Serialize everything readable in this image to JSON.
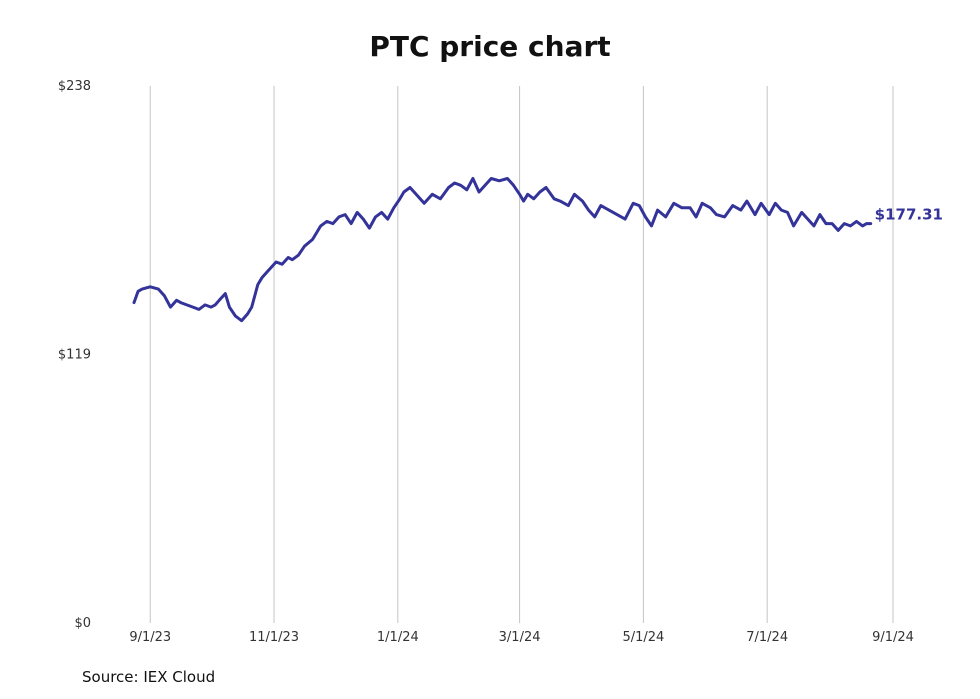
{
  "chart_data": {
    "type": "line",
    "title": "PTC price chart",
    "source": "Source: IEX Cloud",
    "xlabel": "",
    "ylabel": "",
    "ylim": [
      0,
      238
    ],
    "y_ticks": [
      {
        "value": 0,
        "label": "$0"
      },
      {
        "value": 119,
        "label": "$119"
      },
      {
        "value": 238,
        "label": "$238"
      }
    ],
    "x_ticks": [
      {
        "date": "2023-09-01",
        "label": "9/1/23"
      },
      {
        "date": "2023-11-01",
        "label": "11/1/23"
      },
      {
        "date": "2024-01-01",
        "label": "1/1/24"
      },
      {
        "date": "2024-03-01",
        "label": "3/1/24"
      },
      {
        "date": "2024-05-01",
        "label": "5/1/24"
      },
      {
        "date": "2024-07-01",
        "label": "7/1/24"
      },
      {
        "date": "2024-09-01",
        "label": "9/1/24"
      }
    ],
    "xlim": [
      "2023-08-24",
      "2024-09-01"
    ],
    "grid": "vertical",
    "line_color": "#33339a",
    "last_value_label": "$177.31",
    "series": [
      {
        "x": [
          "2023-08-24",
          "2023-08-26",
          "2023-08-28",
          "2023-09-01",
          "2023-09-05",
          "2023-09-08",
          "2023-09-11",
          "2023-09-14",
          "2023-09-16",
          "2023-09-19",
          "2023-09-22",
          "2023-09-25",
          "2023-09-28",
          "2023-10-01",
          "2023-10-03",
          "2023-10-05",
          "2023-10-08",
          "2023-10-10",
          "2023-10-13",
          "2023-10-16",
          "2023-10-19",
          "2023-10-21",
          "2023-10-24",
          "2023-10-26",
          "2023-10-28",
          "2023-10-31",
          "2023-11-02",
          "2023-11-05",
          "2023-11-08",
          "2023-11-10",
          "2023-11-13",
          "2023-11-16",
          "2023-11-20",
          "2023-11-24",
          "2023-11-27",
          "2023-11-30",
          "2023-12-03",
          "2023-12-06",
          "2023-12-09",
          "2023-12-12",
          "2023-12-15",
          "2023-12-18",
          "2023-12-21",
          "2023-12-24",
          "2023-12-27",
          "2023-12-30",
          "2024-01-02",
          "2024-01-04",
          "2024-01-07",
          "2024-01-10",
          "2024-01-14",
          "2024-01-18",
          "2024-01-22",
          "2024-01-26",
          "2024-01-29",
          "2024-02-01",
          "2024-02-04",
          "2024-02-07",
          "2024-02-10",
          "2024-02-13",
          "2024-02-16",
          "2024-02-20",
          "2024-02-24",
          "2024-02-27",
          "2024-03-01",
          "2024-03-03",
          "2024-03-05",
          "2024-03-08",
          "2024-03-11",
          "2024-03-14",
          "2024-03-18",
          "2024-03-21",
          "2024-03-25",
          "2024-03-28",
          "2024-04-01",
          "2024-04-04",
          "2024-04-07",
          "2024-04-10",
          "2024-04-14",
          "2024-04-18",
          "2024-04-22",
          "2024-04-26",
          "2024-04-29",
          "2024-05-02",
          "2024-05-05",
          "2024-05-08",
          "2024-05-12",
          "2024-05-16",
          "2024-05-20",
          "2024-05-24",
          "2024-05-27",
          "2024-05-30",
          "2024-06-03",
          "2024-06-06",
          "2024-06-10",
          "2024-06-14",
          "2024-06-18",
          "2024-06-21",
          "2024-06-25",
          "2024-06-28",
          "2024-07-02",
          "2024-07-05",
          "2024-07-08",
          "2024-07-11",
          "2024-07-14",
          "2024-07-18",
          "2024-07-21",
          "2024-07-24",
          "2024-07-27",
          "2024-07-30",
          "2024-08-02",
          "2024-08-05",
          "2024-08-08",
          "2024-08-11",
          "2024-08-14",
          "2024-08-17",
          "2024-08-19",
          "2024-08-21"
        ],
        "values": [
          142,
          147,
          148,
          149,
          148,
          145,
          140,
          143,
          142,
          141,
          140,
          139,
          141,
          140,
          141,
          143,
          146,
          140,
          136,
          134,
          137,
          140,
          150,
          153,
          155,
          158,
          160,
          159,
          162,
          161,
          163,
          167,
          170,
          176,
          178,
          177,
          180,
          181,
          177,
          182,
          179,
          175,
          180,
          182,
          179,
          184,
          188,
          191,
          193,
          190,
          186,
          190,
          188,
          193,
          195,
          194,
          192,
          197,
          191,
          194,
          197,
          196,
          197,
          194,
          190,
          187,
          190,
          188,
          191,
          193,
          188,
          187,
          185,
          190,
          187,
          183,
          180,
          185,
          183,
          181,
          179,
          186,
          185,
          180,
          176,
          183,
          180,
          186,
          184,
          184,
          180,
          186,
          184,
          181,
          180,
          185,
          183,
          187,
          181,
          186,
          181,
          186,
          183,
          182,
          176,
          182,
          179,
          176,
          181,
          177,
          177,
          174,
          177,
          176,
          178,
          176,
          177,
          177
        ]
      }
    ]
  }
}
